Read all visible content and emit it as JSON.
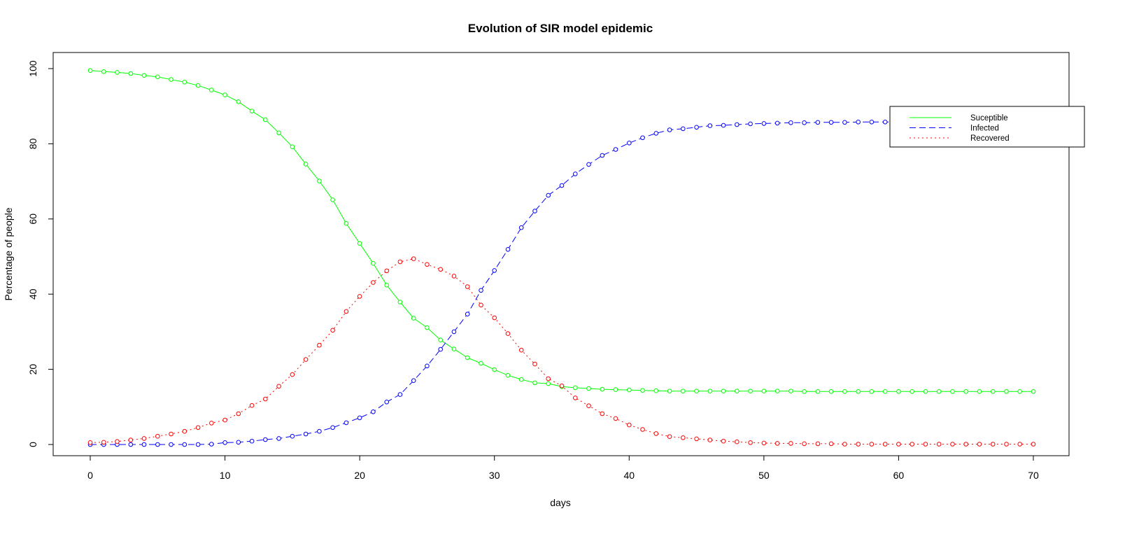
{
  "chart_data": {
    "type": "line",
    "title": "Evolution of SIR model epidemic",
    "xlabel": "days",
    "ylabel": "Percentage of people",
    "xlim": [
      0,
      70
    ],
    "ylim": [
      0,
      100
    ],
    "x_ticks": [
      0,
      10,
      20,
      30,
      40,
      50,
      60,
      70
    ],
    "y_ticks": [
      0,
      20,
      40,
      60,
      80,
      100
    ],
    "x_tick_labels": [
      "0",
      "10",
      "20",
      "30",
      "40",
      "50",
      "60",
      "70"
    ],
    "y_tick_labels": [
      "0",
      "20",
      "40",
      "60",
      "80",
      "100"
    ],
    "grid": false,
    "legend_position": "top-right",
    "markers": "open-circle",
    "x": [
      0,
      1,
      2,
      3,
      4,
      5,
      6,
      7,
      8,
      9,
      10,
      11,
      12,
      13,
      14,
      15,
      16,
      17,
      18,
      19,
      20,
      21,
      22,
      23,
      24,
      25,
      26,
      27,
      28,
      29,
      30,
      31,
      32,
      33,
      34,
      35,
      36,
      37,
      38,
      39,
      40,
      41,
      42,
      43,
      44,
      45,
      46,
      47,
      48,
      49,
      50,
      51,
      52,
      53,
      54,
      55,
      56,
      57,
      58,
      59,
      60,
      61,
      62,
      63,
      64,
      65,
      66,
      67,
      68,
      69,
      70
    ],
    "series": [
      {
        "name": "Suceptible",
        "color": "#00ff00",
        "line_style": "solid",
        "values": [
          99.5,
          99.2,
          99.0,
          98.7,
          98.2,
          97.8,
          97.1,
          96.4,
          95.5,
          94.3,
          93.0,
          91.2,
          88.7,
          86.4,
          82.9,
          79.2,
          74.6,
          70.1,
          65.1,
          58.8,
          53.5,
          48.2,
          42.4,
          37.9,
          33.6,
          31.1,
          27.8,
          25.4,
          23.1,
          21.6,
          19.9,
          18.4,
          17.3,
          16.4,
          16.2,
          15.4,
          15.1,
          14.9,
          14.7,
          14.6,
          14.5,
          14.4,
          14.3,
          14.2,
          14.2,
          14.2,
          14.2,
          14.2,
          14.2,
          14.2,
          14.2,
          14.2,
          14.2,
          14.1,
          14.1,
          14.1,
          14.1,
          14.1,
          14.1,
          14.1,
          14.1,
          14.1,
          14.1,
          14.1,
          14.1,
          14.1,
          14.1,
          14.1,
          14.1,
          14.1,
          14.1
        ]
      },
      {
        "name": "Infected",
        "color": "#0000ff",
        "line_style": "dashed",
        "values": [
          0.0,
          0.0,
          0.0,
          0.0,
          0.0,
          0.0,
          0.0,
          0.0,
          0.0,
          0.1,
          0.5,
          0.6,
          0.9,
          1.3,
          1.6,
          2.2,
          2.8,
          3.5,
          4.5,
          5.8,
          7.1,
          8.7,
          11.3,
          13.3,
          17.0,
          20.9,
          25.3,
          30.0,
          34.7,
          41.0,
          46.3,
          51.9,
          57.7,
          62.1,
          66.3,
          68.9,
          72.0,
          74.5,
          76.9,
          78.5,
          80.2,
          81.6,
          82.8,
          83.7,
          84.0,
          84.4,
          84.8,
          84.9,
          85.1,
          85.3,
          85.4,
          85.5,
          85.6,
          85.6,
          85.7,
          85.7,
          85.7,
          85.8,
          85.8,
          85.8,
          85.8,
          85.8,
          85.8,
          85.8,
          85.8,
          85.8,
          85.8,
          85.8,
          85.8,
          85.8,
          85.8
        ]
      },
      {
        "name": "Recovered",
        "color": "#ff0000",
        "line_style": "dotted",
        "values": [
          0.5,
          0.6,
          0.8,
          1.2,
          1.6,
          2.2,
          2.8,
          3.5,
          4.5,
          5.7,
          6.5,
          8.2,
          10.4,
          12.1,
          15.5,
          18.6,
          22.6,
          26.4,
          30.4,
          35.4,
          39.4,
          43.1,
          46.2,
          48.6,
          49.4,
          47.9,
          46.6,
          44.8,
          42.0,
          37.1,
          33.7,
          29.5,
          25.1,
          21.4,
          17.5,
          15.6,
          12.4,
          10.3,
          8.2,
          6.9,
          5.2,
          4.0,
          2.9,
          2.1,
          1.8,
          1.5,
          1.2,
          0.9,
          0.7,
          0.5,
          0.4,
          0.3,
          0.3,
          0.2,
          0.2,
          0.2,
          0.1,
          0.1,
          0.1,
          0.1,
          0.1,
          0.1,
          0.1,
          0.1,
          0.1,
          0.1,
          0.1,
          0.1,
          0.1,
          0.1,
          0.1
        ]
      }
    ]
  }
}
